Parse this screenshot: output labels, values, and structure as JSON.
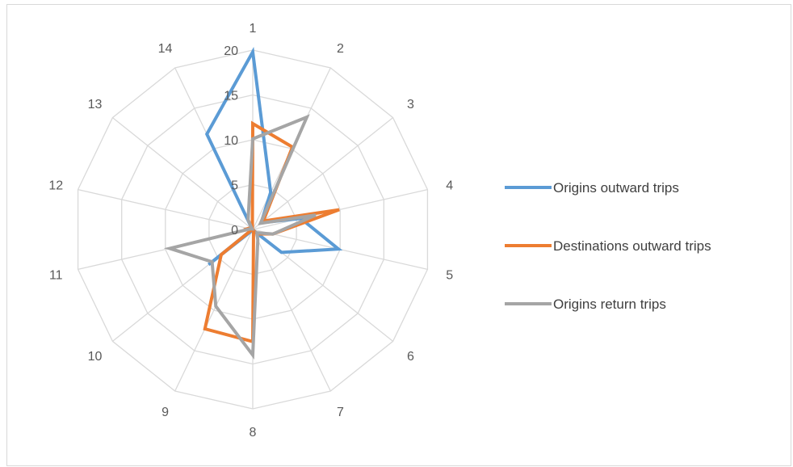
{
  "chart_data": {
    "type": "radar",
    "categories": [
      "1",
      "2",
      "3",
      "4",
      "5",
      "6",
      "7",
      "8",
      "9",
      "10",
      "11",
      "12",
      "13",
      "14"
    ],
    "rlim": [
      0,
      20
    ],
    "ticks": [
      0,
      5,
      10,
      15,
      20
    ],
    "tick_labels": [
      "0",
      "5",
      "10",
      "15",
      "20"
    ],
    "series": [
      {
        "name": "Origins outward trips",
        "color": "#5b9bd5",
        "values": [
          19.8,
          4.6,
          1.2,
          5.5,
          9.8,
          4.1,
          0.1,
          0.1,
          0.1,
          6.3,
          0.1,
          0.1,
          0.1,
          11.8
        ]
      },
      {
        "name": "Destinations outward trips",
        "color": "#ed7d31",
        "values": [
          11.8,
          10.2,
          1.5,
          9.9,
          2.3,
          0.8,
          0.2,
          12.5,
          12.3,
          4.5,
          0.1,
          0.5,
          0.3,
          0.1
        ]
      },
      {
        "name": "Origins return trips",
        "color": "#a5a5a5",
        "values": [
          10.1,
          13.9,
          1.1,
          7.2,
          2.3,
          0.6,
          1.3,
          14.0,
          9.5,
          5.8,
          9.5,
          0.3,
          0.1,
          1.2
        ]
      }
    ],
    "grid": true,
    "legend_position": "right"
  }
}
